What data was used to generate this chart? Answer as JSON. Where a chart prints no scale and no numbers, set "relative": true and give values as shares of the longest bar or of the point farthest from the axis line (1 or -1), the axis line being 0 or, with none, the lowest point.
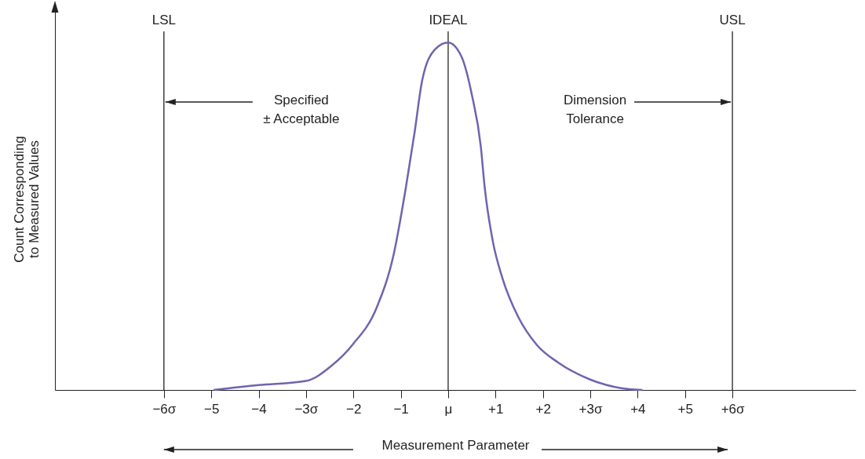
{
  "chart_data": {
    "type": "line",
    "relative": true,
    "xlabel": "Measurement Parameter",
    "ylabel": "Count Corresponding\nto Measured Values",
    "xlim": [
      -8.3,
      8.6
    ],
    "xticks": [
      {
        "value": -6,
        "label": "−6σ"
      },
      {
        "value": -5,
        "label": "−5"
      },
      {
        "value": -4,
        "label": "−4"
      },
      {
        "value": -3,
        "label": "−3σ"
      },
      {
        "value": -2,
        "label": "−2"
      },
      {
        "value": -1,
        "label": "−1"
      },
      {
        "value": 0,
        "label": "μ"
      },
      {
        "value": 1,
        "label": "+1"
      },
      {
        "value": 2,
        "label": "+2"
      },
      {
        "value": 3,
        "label": "+3σ"
      },
      {
        "value": 4,
        "label": "+4"
      },
      {
        "value": 5,
        "label": "+5"
      },
      {
        "value": 6,
        "label": "+6σ"
      }
    ],
    "x": [
      -4.95,
      -4,
      -3,
      -2.45,
      -2.02,
      -1.5,
      -1.15,
      -0.89,
      -0.71,
      -0.55,
      -0.28,
      0,
      0.28,
      0.5,
      0.69,
      0.77,
      0.94,
      1.15,
      1.48,
      1.87,
      2.32,
      3,
      3.82,
      4.1
    ],
    "series": [
      {
        "color": "#6e64b0",
        "values": [
          0,
          0.014,
          0.026,
          0.071,
          0.13,
          0.24,
          0.39,
          0.585,
          0.74,
          0.89,
          0.98,
          1,
          0.96,
          0.85,
          0.7,
          0.585,
          0.43,
          0.32,
          0.21,
          0.13,
          0.079,
          0.03,
          0.002,
          0
        ]
      }
    ],
    "ref_lines": [
      {
        "axis": "x",
        "value": -6,
        "label": "LSL"
      },
      {
        "axis": "x",
        "value": 0,
        "label": "IDEAL"
      },
      {
        "axis": "x",
        "value": 6,
        "label": "USL"
      }
    ],
    "annotations": [
      "Specified\n± Acceptable",
      "Dimension\nTolerance"
    ]
  }
}
